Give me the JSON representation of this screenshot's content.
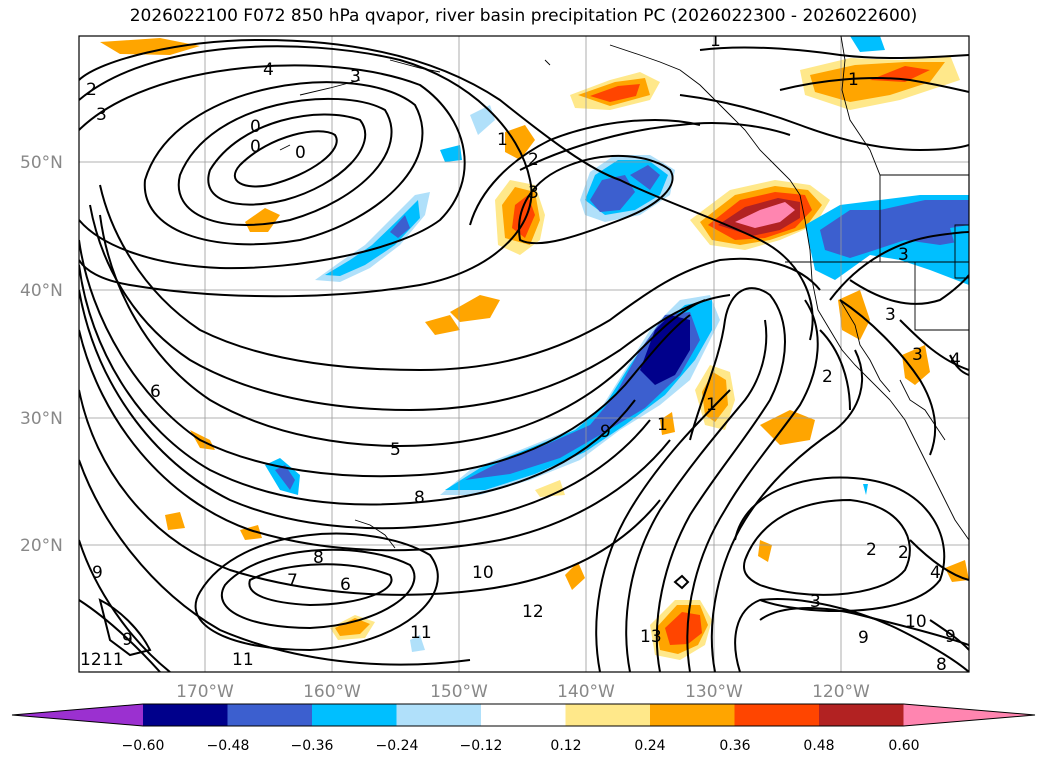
{
  "title": "2026022100 F072 850 hPa qvapor, river basin precipitation PC (2026022300 - 2026022600)",
  "lat_ticks": [
    "50°N",
    "40°N",
    "30°N",
    "20°N"
  ],
  "lon_ticks": [
    "170°W",
    "160°W",
    "150°W",
    "140°W",
    "130°W",
    "120°W"
  ],
  "colorbar": {
    "tick_labels": [
      "−0.60",
      "−0.48",
      "−0.36",
      "−0.24",
      "−0.12",
      "0.12",
      "0.24",
      "0.36",
      "0.48",
      "0.60"
    ],
    "colors": [
      "#9b30d0",
      "#00008b",
      "#3c5fcf",
      "#00bfff",
      "#b0e0fa",
      "#ffffff",
      "#ffe88a",
      "#ffa500",
      "#ff4500",
      "#b22222",
      "#ff85b0"
    ]
  },
  "contour_labels": [
    "4",
    "3",
    "2",
    "3",
    "0",
    "0",
    "0",
    "1",
    "2",
    "3",
    "1",
    "1",
    "3",
    "3",
    "3",
    "4",
    "2",
    "6",
    "5",
    "8",
    "9",
    "1",
    "1",
    "7",
    "6",
    "8",
    "9",
    "10",
    "11",
    "12",
    "13",
    "11",
    "9",
    "11",
    "12",
    "3",
    "9",
    "10",
    "2",
    "2",
    "4",
    "8",
    "9"
  ]
}
